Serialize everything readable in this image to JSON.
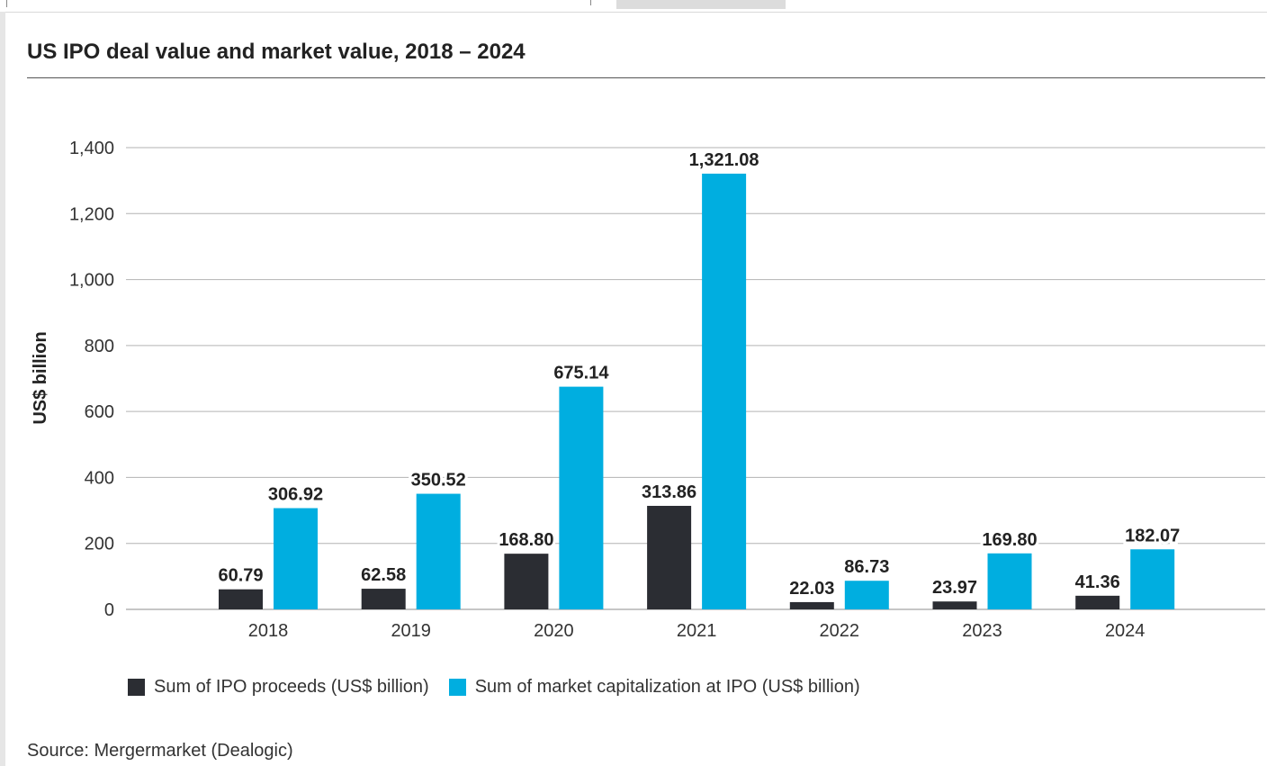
{
  "title": "US IPO deal value and market value, 2018 – 2024",
  "source": "Source: Mergermarket (Dealogic)",
  "colors": {
    "proceeds": "#2b2d33",
    "market_cap": "#00aee0",
    "grid": "#b3b3b3"
  },
  "chart_data": {
    "type": "bar",
    "title": "US IPO deal value and market value, 2018 – 2024",
    "xlabel": "",
    "ylabel": "US$ billion",
    "ylim": [
      0,
      1400
    ],
    "yticks": [
      0,
      200,
      400,
      600,
      800,
      1000,
      1200,
      1400
    ],
    "ytick_labels": [
      "0",
      "200",
      "400",
      "600",
      "800",
      "1,000",
      "1,200",
      "1,400"
    ],
    "grid": true,
    "legend_position": "bottom",
    "categories": [
      "2018",
      "2019",
      "2020",
      "2021",
      "2022",
      "2023",
      "2024"
    ],
    "series": [
      {
        "name": "Sum of IPO proceeds (US$ billion)",
        "values": [
          60.79,
          62.58,
          168.8,
          313.86,
          22.03,
          23.97,
          41.36
        ],
        "labels": [
          "60.79",
          "62.58",
          "168.80",
          "313.86",
          "22.03",
          "23.97",
          "41.36"
        ]
      },
      {
        "name": "Sum of market capitalization at IPO (US$ billion)",
        "values": [
          306.92,
          350.52,
          675.14,
          1321.08,
          86.73,
          169.8,
          182.07
        ],
        "labels": [
          "306.92",
          "350.52",
          "675.14",
          "1,321.08",
          "86.73",
          "169.80",
          "182.07"
        ]
      }
    ]
  }
}
